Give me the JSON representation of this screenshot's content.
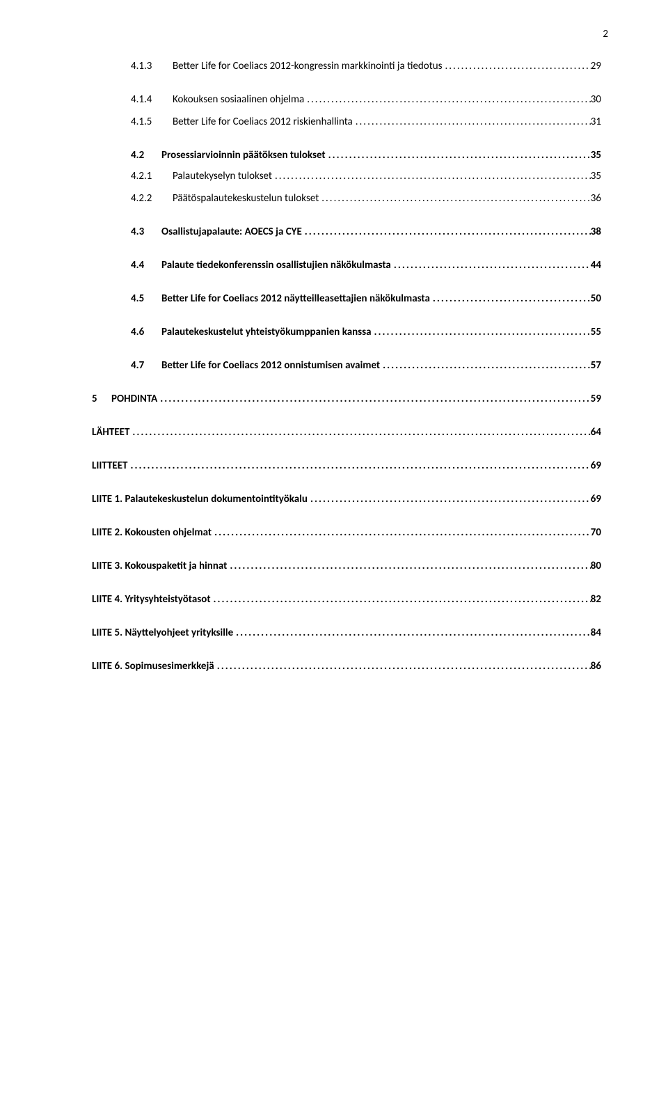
{
  "page_number": "2",
  "leader": "................................................................................................................................................",
  "entries": [
    {
      "cls": "lvl3 block-413",
      "bold": false,
      "num": "4.1.3",
      "title": "Better Life for Coeliacs 2012-kongressin markkinointi ja tiedotus",
      "page": "29"
    },
    {
      "cls": "lvl3",
      "bold": false,
      "num": "4.1.4",
      "title": "Kokouksen sosiaalinen ohjelma",
      "page": "30"
    },
    {
      "cls": "lvl3",
      "bold": false,
      "num": "4.1.5",
      "title": "Better Life for Coeliacs 2012 riskienhallinta",
      "page": "31"
    },
    {
      "cls": "lvl2 tight-after",
      "bold": true,
      "num": "4.2",
      "title": "Prosessiarvioinnin päätöksen tulokset",
      "page": "35"
    },
    {
      "cls": "lvl3",
      "bold": false,
      "num": "4.2.1",
      "title": "Palautekyselyn tulokset",
      "page": "35"
    },
    {
      "cls": "lvl3",
      "bold": false,
      "num": "4.2.2",
      "title": "Päätöspalautekeskustelun tulokset",
      "page": "36"
    },
    {
      "cls": "lvl2",
      "bold": true,
      "num": "4.3",
      "title": "Osallistujapalaute: AOECS ja CYE",
      "page": "38"
    },
    {
      "cls": "lvl2",
      "bold": true,
      "num": "4.4",
      "title": "Palaute tiedekonferenssin osallistujien näkökulmasta",
      "page": "44"
    },
    {
      "cls": "lvl2",
      "bold": true,
      "num": "4.5",
      "title": "Better Life for Coeliacs 2012 näytteilleasettajien näkökulmasta",
      "page": "50"
    },
    {
      "cls": "lvl2",
      "bold": true,
      "num": "4.6",
      "title": "Palautekeskustelut yhteistyökumppanien kanssa",
      "page": "55"
    },
    {
      "cls": "lvl2",
      "bold": true,
      "num": "4.7",
      "title": "Better Life for Coeliacs 2012 onnistumisen avaimet",
      "page": "57"
    },
    {
      "cls": "lvl1",
      "bold": true,
      "num": "5",
      "title": "POHDINTA",
      "page": "59"
    },
    {
      "cls": "lvl0",
      "bold": true,
      "num": "",
      "title": "LÄHTEET",
      "page": "64"
    },
    {
      "cls": "lvl0",
      "bold": true,
      "num": "",
      "title": "LIITTEET",
      "page": "69"
    },
    {
      "cls": "lvl0",
      "bold": true,
      "num": "",
      "title": "LIITE 1. Palautekeskustelun dokumentointityökalu",
      "page": "69"
    },
    {
      "cls": "lvl0",
      "bold": true,
      "num": "",
      "title": "LIITE 2. Kokousten ohjelmat",
      "page": "70"
    },
    {
      "cls": "lvl0",
      "bold": true,
      "num": "",
      "title": "LIITE 3. Kokouspaketit ja hinnat",
      "page": "80"
    },
    {
      "cls": "lvl0",
      "bold": true,
      "num": "",
      "title": "LIITE 4. Yritysyhteistyötasot",
      "page": "82"
    },
    {
      "cls": "lvl0",
      "bold": true,
      "num": "",
      "title": "LIITE 5. Näyttelyohjeet yrityksille",
      "page": "84"
    },
    {
      "cls": "lvl0",
      "bold": true,
      "num": "",
      "title": "LIITE 6. Sopimusesimerkkejä",
      "page": "86"
    }
  ]
}
